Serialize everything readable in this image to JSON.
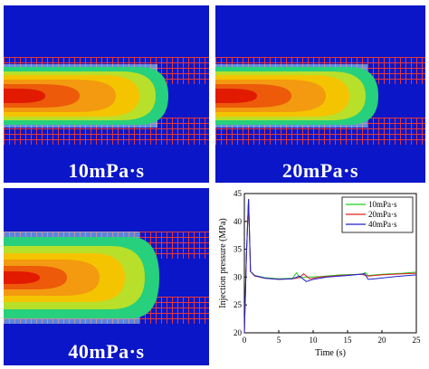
{
  "panels": [
    {
      "label": "10mPa·s"
    },
    {
      "label": "20mPa·s"
    },
    {
      "label": "40mPa·s"
    }
  ],
  "chart_data": {
    "type": "line",
    "xlabel": "Time (s)",
    "ylabel": "Injection pressure (MPa)",
    "xlim": [
      0,
      25
    ],
    "ylim": [
      20,
      45
    ],
    "xticks": [
      0,
      5,
      10,
      15,
      20,
      25
    ],
    "yticks": [
      20,
      25,
      30,
      35,
      40,
      45
    ],
    "legend_position": "top-right",
    "series": [
      {
        "name": "10mPa·s",
        "color": "#22cc22",
        "x": [
          0,
          0.3,
          0.6,
          0.9,
          1.5,
          3,
          5,
          7,
          7.6,
          8,
          9,
          11,
          14,
          17,
          17.6,
          18,
          20,
          23,
          25
        ],
        "y": [
          20,
          34,
          44,
          31,
          30.3,
          29.9,
          29.7,
          29.8,
          30.8,
          29.9,
          30,
          30.1,
          30.4,
          30.5,
          30.8,
          30.3,
          30.5,
          30.7,
          30.9
        ]
      },
      {
        "name": "20mPa·s",
        "color": "#e02020",
        "x": [
          0,
          0.3,
          0.6,
          0.9,
          1.5,
          3,
          5,
          7,
          8,
          8.6,
          9.5,
          11,
          14,
          17,
          18,
          20,
          23,
          25
        ],
        "y": [
          20,
          34,
          44,
          31,
          30.2,
          29.8,
          29.6,
          29.7,
          29.9,
          30.6,
          29.7,
          30,
          30.3,
          30.5,
          30.2,
          30.4,
          30.6,
          30.7
        ]
      },
      {
        "name": "40mPa·s",
        "color": "#2020cc",
        "x": [
          0,
          0.3,
          0.6,
          0.9,
          1.5,
          3,
          5,
          7,
          8,
          9,
          10,
          12,
          15,
          17.5,
          18,
          19,
          22,
          25
        ],
        "y": [
          20,
          34,
          44,
          31,
          30.3,
          29.8,
          29.6,
          29.7,
          30.2,
          29.2,
          29.6,
          30,
          30.3,
          30.6,
          29.6,
          29.7,
          30.1,
          30.4
        ]
      }
    ]
  }
}
